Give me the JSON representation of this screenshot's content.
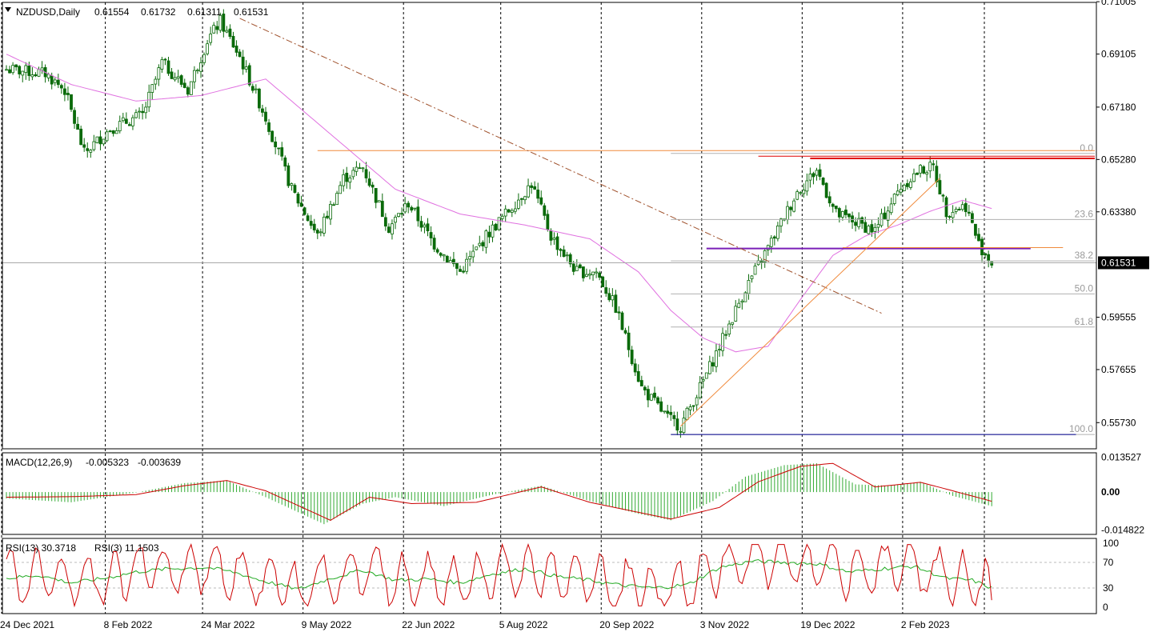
{
  "header": {
    "symbol": "NZDUSD,Daily",
    "open": "0.61554",
    "high": "0.61732",
    "low": "0.61311",
    "close": "0.61531"
  },
  "macd": {
    "label": "MACD(12,26,9)",
    "main": "-0.005323",
    "signal": "-0.003639"
  },
  "rsi": {
    "label": "RSI(13) 30.3718",
    "label2": "RSI(3) 11.1503"
  },
  "colors": {
    "candle": "#0a6a0a",
    "ma": "#e070e0",
    "macd_hist": "#33aa33",
    "signal": "#cc0000",
    "rsi13": "#22aa22",
    "rsi3": "#cc0000",
    "orange_line": "#f08a3c",
    "red_resistance": "#e00000",
    "purple_support": "#7a1fb8",
    "blue_low": "#000090",
    "trend_dashdot": "#a0522d"
  },
  "chart_data": [
    {
      "type": "candlestick",
      "name": "price",
      "ylim": [
        0.5478,
        0.7098
      ],
      "price_ticks": [
        "0.71005",
        "0.69105",
        "0.67180",
        "0.65280",
        "0.63380",
        "0.61531",
        "0.59555",
        "0.57655",
        "0.55730"
      ],
      "current_price": "0.61531",
      "date_ticks": [
        "24 Dec 2021",
        "8 Feb 2022",
        "24 Mar 2022",
        "9 May 2022",
        "22 Jun 2022",
        "5 Aug 2022",
        "20 Sep 2022",
        "3 Nov 2022",
        "19 Dec 2022",
        "2 Feb 2023"
      ],
      "date_tick_bar_index": [
        0,
        32,
        62,
        93,
        124,
        154,
        185,
        216,
        247,
        278
      ],
      "bar_count": 305,
      "anchors": [
        {
          "i": 0,
          "p": 0.6855
        },
        {
          "i": 12,
          "p": 0.684
        },
        {
          "i": 18,
          "p": 0.678
        },
        {
          "i": 24,
          "p": 0.655
        },
        {
          "i": 32,
          "p": 0.664
        },
        {
          "i": 42,
          "p": 0.669
        },
        {
          "i": 48,
          "p": 0.688
        },
        {
          "i": 56,
          "p": 0.678
        },
        {
          "i": 62,
          "p": 0.696
        },
        {
          "i": 66,
          "p": 0.703
        },
        {
          "i": 72,
          "p": 0.69
        },
        {
          "i": 80,
          "p": 0.668
        },
        {
          "i": 88,
          "p": 0.642
        },
        {
          "i": 96,
          "p": 0.625
        },
        {
          "i": 104,
          "p": 0.646
        },
        {
          "i": 110,
          "p": 0.65
        },
        {
          "i": 118,
          "p": 0.628
        },
        {
          "i": 124,
          "p": 0.637
        },
        {
          "i": 132,
          "p": 0.622
        },
        {
          "i": 140,
          "p": 0.612
        },
        {
          "i": 148,
          "p": 0.625
        },
        {
          "i": 154,
          "p": 0.633
        },
        {
          "i": 162,
          "p": 0.644
        },
        {
          "i": 168,
          "p": 0.625
        },
        {
          "i": 176,
          "p": 0.612
        },
        {
          "i": 182,
          "p": 0.612
        },
        {
          "i": 188,
          "p": 0.599
        },
        {
          "i": 196,
          "p": 0.57
        },
        {
          "i": 204,
          "p": 0.559
        },
        {
          "i": 208,
          "p": 0.556
        },
        {
          "i": 214,
          "p": 0.57
        },
        {
          "i": 220,
          "p": 0.585
        },
        {
          "i": 228,
          "p": 0.606
        },
        {
          "i": 236,
          "p": 0.623
        },
        {
          "i": 244,
          "p": 0.641
        },
        {
          "i": 250,
          "p": 0.649
        },
        {
          "i": 256,
          "p": 0.633
        },
        {
          "i": 262,
          "p": 0.63
        },
        {
          "i": 268,
          "p": 0.627
        },
        {
          "i": 276,
          "p": 0.643
        },
        {
          "i": 282,
          "p": 0.649
        },
        {
          "i": 286,
          "p": 0.65
        },
        {
          "i": 290,
          "p": 0.634
        },
        {
          "i": 296,
          "p": 0.636
        },
        {
          "i": 300,
          "p": 0.622
        },
        {
          "i": 304,
          "p": 0.6153
        }
      ],
      "ma_anchors": [
        {
          "i": 0,
          "p": 0.691
        },
        {
          "i": 20,
          "p": 0.68
        },
        {
          "i": 40,
          "p": 0.674
        },
        {
          "i": 60,
          "p": 0.676
        },
        {
          "i": 80,
          "p": 0.682
        },
        {
          "i": 100,
          "p": 0.662
        },
        {
          "i": 120,
          "p": 0.642
        },
        {
          "i": 140,
          "p": 0.633
        },
        {
          "i": 160,
          "p": 0.629
        },
        {
          "i": 180,
          "p": 0.624
        },
        {
          "i": 195,
          "p": 0.612
        },
        {
          "i": 205,
          "p": 0.598
        },
        {
          "i": 215,
          "p": 0.588
        },
        {
          "i": 225,
          "p": 0.583
        },
        {
          "i": 235,
          "p": 0.585
        },
        {
          "i": 245,
          "p": 0.602
        },
        {
          "i": 255,
          "p": 0.618
        },
        {
          "i": 265,
          "p": 0.625
        },
        {
          "i": 275,
          "p": 0.629
        },
        {
          "i": 285,
          "p": 0.634
        },
        {
          "i": 295,
          "p": 0.638
        },
        {
          "i": 304,
          "p": 0.635
        }
      ],
      "fibonacci": [
        {
          "level": "0.0",
          "price": 0.655
        },
        {
          "level": "23.6",
          "price": 0.631
        },
        {
          "level": "38.2",
          "price": 0.616
        },
        {
          "level": "50.0",
          "price": 0.604
        },
        {
          "level": "61.8",
          "price": 0.592
        },
        {
          "level": "100.0",
          "price": 0.553
        }
      ],
      "lines": [
        {
          "kind": "orange-horizontal",
          "from_i": 96,
          "to_i": 337,
          "price": 0.656
        },
        {
          "kind": "red-resistance",
          "from_i": 232,
          "to_i": 339,
          "price": 0.654
        },
        {
          "kind": "red-resistance-2",
          "from_i": 248,
          "to_i": 339,
          "price": 0.6532
        },
        {
          "kind": "purple-support",
          "from_i": 216,
          "to_i": 316,
          "price": 0.6205
        },
        {
          "kind": "orange-support",
          "from_i": 258,
          "to_i": 326,
          "price": 0.6208
        },
        {
          "kind": "blue-low",
          "from_i": 205,
          "to_i": 330,
          "price": 0.553
        },
        {
          "kind": "trend-dashdot",
          "from_i": 72,
          "from_p": 0.704,
          "to_i": 270,
          "to_p": 0.597
        },
        {
          "kind": "uptrend",
          "from_i": 208,
          "from_p": 0.556,
          "to_i": 288,
          "to_p": 0.646
        }
      ]
    },
    {
      "type": "histogram+line",
      "name": "MACD(12,26,9)",
      "y_ticks": [
        "0.013527",
        "0.00",
        "-0.014822"
      ],
      "ylim": [
        -0.0165,
        0.0153
      ],
      "hist_anchors": [
        {
          "i": 0,
          "v": -0.0025
        },
        {
          "i": 20,
          "v": -0.004
        },
        {
          "i": 40,
          "v": -0.0002
        },
        {
          "i": 55,
          "v": 0.0035
        },
        {
          "i": 68,
          "v": 0.0045
        },
        {
          "i": 80,
          "v": -0.002
        },
        {
          "i": 98,
          "v": -0.0125
        },
        {
          "i": 110,
          "v": -0.0045
        },
        {
          "i": 120,
          "v": -0.002
        },
        {
          "i": 135,
          "v": -0.0055
        },
        {
          "i": 150,
          "v": -0.001
        },
        {
          "i": 165,
          "v": 0.0025
        },
        {
          "i": 180,
          "v": -0.0035
        },
        {
          "i": 195,
          "v": -0.0085
        },
        {
          "i": 205,
          "v": -0.011
        },
        {
          "i": 218,
          "v": -0.0035
        },
        {
          "i": 228,
          "v": 0.006
        },
        {
          "i": 240,
          "v": 0.0105
        },
        {
          "i": 250,
          "v": 0.0112
        },
        {
          "i": 262,
          "v": 0.003
        },
        {
          "i": 272,
          "v": 0.0025
        },
        {
          "i": 282,
          "v": 0.004
        },
        {
          "i": 292,
          "v": -0.0015
        },
        {
          "i": 304,
          "v": -0.0055
        }
      ],
      "signal_anchors": [
        {
          "i": 0,
          "v": -0.002
        },
        {
          "i": 20,
          "v": -0.0018
        },
        {
          "i": 40,
          "v": -0.001
        },
        {
          "i": 55,
          "v": 0.0025
        },
        {
          "i": 68,
          "v": 0.0045
        },
        {
          "i": 80,
          "v": 0.0005
        },
        {
          "i": 100,
          "v": -0.011
        },
        {
          "i": 112,
          "v": -0.002
        },
        {
          "i": 125,
          "v": -0.0045
        },
        {
          "i": 145,
          "v": -0.004
        },
        {
          "i": 165,
          "v": 0.002
        },
        {
          "i": 180,
          "v": -0.004
        },
        {
          "i": 205,
          "v": -0.0105
        },
        {
          "i": 220,
          "v": -0.006
        },
        {
          "i": 232,
          "v": 0.004
        },
        {
          "i": 245,
          "v": 0.01
        },
        {
          "i": 255,
          "v": 0.0112
        },
        {
          "i": 268,
          "v": 0.002
        },
        {
          "i": 282,
          "v": 0.0038
        },
        {
          "i": 292,
          "v": 0.0005
        },
        {
          "i": 304,
          "v": -0.0036
        }
      ]
    },
    {
      "type": "line",
      "name": "RSI",
      "y_ticks": [
        "100",
        "70",
        "30",
        "0"
      ],
      "ylim": [
        0,
        100
      ],
      "rsi13_anchors": [
        {
          "i": 0,
          "v": 45
        },
        {
          "i": 10,
          "v": 50
        },
        {
          "i": 20,
          "v": 38
        },
        {
          "i": 30,
          "v": 45
        },
        {
          "i": 40,
          "v": 55
        },
        {
          "i": 50,
          "v": 60
        },
        {
          "i": 62,
          "v": 62
        },
        {
          "i": 70,
          "v": 55
        },
        {
          "i": 80,
          "v": 40
        },
        {
          "i": 90,
          "v": 28
        },
        {
          "i": 100,
          "v": 45
        },
        {
          "i": 110,
          "v": 58
        },
        {
          "i": 120,
          "v": 42
        },
        {
          "i": 130,
          "v": 44
        },
        {
          "i": 140,
          "v": 38
        },
        {
          "i": 150,
          "v": 52
        },
        {
          "i": 160,
          "v": 60
        },
        {
          "i": 170,
          "v": 48
        },
        {
          "i": 180,
          "v": 42
        },
        {
          "i": 190,
          "v": 34
        },
        {
          "i": 200,
          "v": 30
        },
        {
          "i": 210,
          "v": 35
        },
        {
          "i": 220,
          "v": 62
        },
        {
          "i": 230,
          "v": 72
        },
        {
          "i": 240,
          "v": 70
        },
        {
          "i": 250,
          "v": 68
        },
        {
          "i": 260,
          "v": 55
        },
        {
          "i": 270,
          "v": 60
        },
        {
          "i": 280,
          "v": 64
        },
        {
          "i": 290,
          "v": 45
        },
        {
          "i": 298,
          "v": 42
        },
        {
          "i": 304,
          "v": 30
        }
      ]
    }
  ]
}
